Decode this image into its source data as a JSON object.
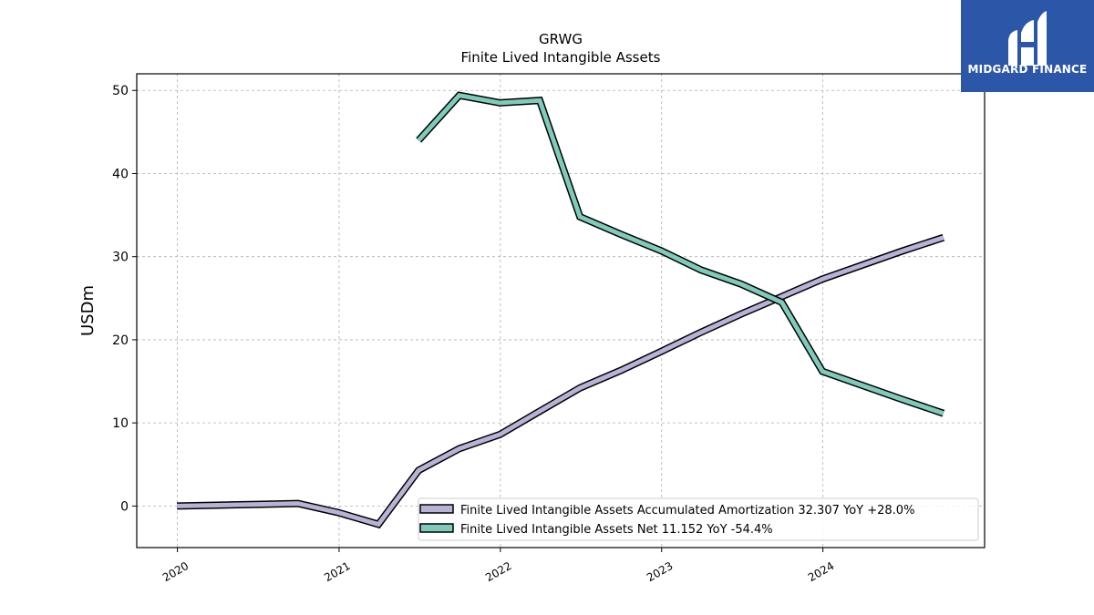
{
  "logo": {
    "text": "MIDGARD FINANCE",
    "background": "#2c56a8"
  },
  "chart_data": {
    "type": "line",
    "title": "GRWG",
    "subtitle": "Finite Lived Intangible Assets",
    "ylabel": "USDm",
    "xlabel": "",
    "xlim": [
      "2019-10-01",
      "2025-01-01"
    ],
    "ylim": [
      -5,
      52
    ],
    "yticks": [
      0,
      10,
      20,
      30,
      40,
      50
    ],
    "xticks": [
      "2020",
      "2021",
      "2022",
      "2023",
      "2024"
    ],
    "grid": true,
    "legend_position": "lower-right",
    "series": [
      {
        "name": "Finite Lived Intangible Assets Accumulated Amortization  32.307 YoY +28.0%",
        "color": "#b8b2d6",
        "points": [
          [
            "2019-12-31",
            0.0
          ],
          [
            "2020-03-31",
            0.1
          ],
          [
            "2020-06-30",
            0.2
          ],
          [
            "2020-09-30",
            0.3
          ],
          [
            "2020-12-31",
            -0.8
          ],
          [
            "2021-03-31",
            -2.2
          ],
          [
            "2021-06-30",
            4.3
          ],
          [
            "2021-09-30",
            6.9
          ],
          [
            "2021-12-31",
            8.6
          ],
          [
            "2022-03-31",
            11.4
          ],
          [
            "2022-06-30",
            14.2
          ],
          [
            "2022-09-30",
            16.3
          ],
          [
            "2022-12-31",
            18.6
          ],
          [
            "2023-03-31",
            20.9
          ],
          [
            "2023-06-30",
            23.1
          ],
          [
            "2023-09-30",
            25.2
          ],
          [
            "2023-12-31",
            27.3
          ],
          [
            "2024-03-31",
            29.0
          ],
          [
            "2024-06-30",
            30.7
          ],
          [
            "2024-09-30",
            32.3
          ]
        ]
      },
      {
        "name": "Finite Lived Intangible Assets Net  11.152 YoY -54.4%",
        "color": "#7fcbbb",
        "points": [
          [
            "2021-06-30",
            44.0
          ],
          [
            "2021-09-30",
            49.4
          ],
          [
            "2021-12-31",
            48.5
          ],
          [
            "2022-03-31",
            48.8
          ],
          [
            "2022-06-30",
            34.8
          ],
          [
            "2022-09-30",
            32.7
          ],
          [
            "2022-12-31",
            30.7
          ],
          [
            "2023-03-31",
            28.4
          ],
          [
            "2023-06-30",
            26.7
          ],
          [
            "2023-09-30",
            24.5
          ],
          [
            "2023-12-31",
            16.2
          ],
          [
            "2024-03-31",
            14.5
          ],
          [
            "2024-06-30",
            12.8
          ],
          [
            "2024-09-30",
            11.15
          ]
        ]
      }
    ]
  }
}
